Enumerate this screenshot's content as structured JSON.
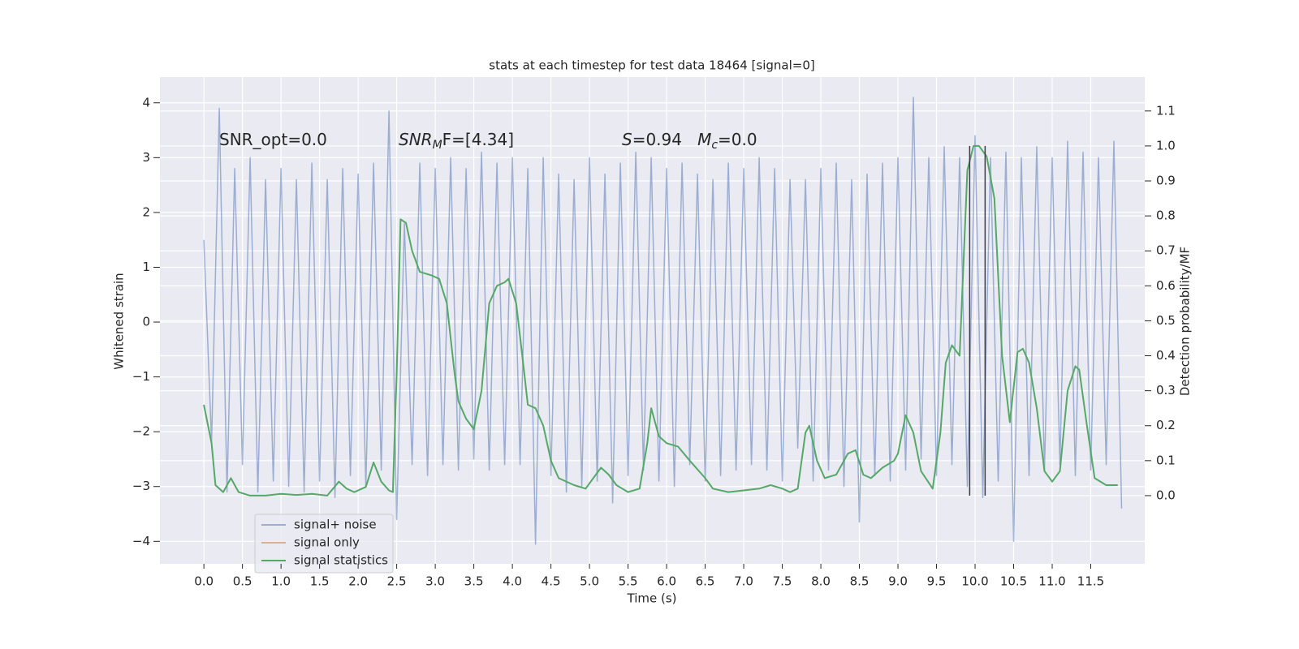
{
  "chart_data": {
    "type": "line",
    "title": "stats at each timestep for test data 18464 [signal=0]",
    "xlabel": "Time (s)",
    "ylabel": "Whitened strain",
    "y2label": "Detection probability/MF",
    "xlim": [
      -0.57,
      12.2
    ],
    "ylim": [
      -4.41,
      4.47
    ],
    "y2lim": [
      -0.195,
      1.197
    ],
    "grid": true,
    "legend": "lower left",
    "xticks": [
      {
        "value": 0,
        "label": "0.0"
      },
      {
        "value": 0.5,
        "label": "0.5"
      },
      {
        "value": 1,
        "label": "1.0"
      },
      {
        "value": 1.5,
        "label": "1.5"
      },
      {
        "value": 2,
        "label": "2.0"
      },
      {
        "value": 2.5,
        "label": "2.5"
      },
      {
        "value": 3,
        "label": "3.0"
      },
      {
        "value": 3.5,
        "label": "3.5"
      },
      {
        "value": 4,
        "label": "4.0"
      },
      {
        "value": 4.5,
        "label": "4.5"
      },
      {
        "value": 5,
        "label": "5.0"
      },
      {
        "value": 5.5,
        "label": "5.5"
      },
      {
        "value": 6,
        "label": "6.0"
      },
      {
        "value": 6.5,
        "label": "6.5"
      },
      {
        "value": 7,
        "label": "7.0"
      },
      {
        "value": 7.5,
        "label": "7.5"
      },
      {
        "value": 8,
        "label": "8.0"
      },
      {
        "value": 8.5,
        "label": "8.5"
      },
      {
        "value": 9,
        "label": "9.0"
      },
      {
        "value": 9.5,
        "label": "9.5"
      },
      {
        "value": 10,
        "label": "10.0"
      },
      {
        "value": 10.5,
        "label": "10.5"
      },
      {
        "value": 11,
        "label": "11.0"
      },
      {
        "value": 11.5,
        "label": "11.5"
      }
    ],
    "yticks": [
      {
        "value": -4,
        "label": "−4"
      },
      {
        "value": -3,
        "label": "−3"
      },
      {
        "value": -2,
        "label": "−2"
      },
      {
        "value": -1,
        "label": "−1"
      },
      0,
      1,
      2,
      3,
      4
    ],
    "y2ticks": [
      {
        "value": 0,
        "label": "0.0"
      },
      {
        "value": 0.1,
        "label": "0.1"
      },
      {
        "value": 0.2,
        "label": "0.2"
      },
      {
        "value": 0.3,
        "label": "0.3"
      },
      {
        "value": 0.4,
        "label": "0.4"
      },
      {
        "value": 0.5,
        "label": "0.5"
      },
      {
        "value": 0.6,
        "label": "0.6"
      },
      {
        "value": 0.7,
        "label": "0.7"
      },
      {
        "value": 0.8,
        "label": "0.8"
      },
      {
        "value": 0.9,
        "label": "0.9"
      },
      {
        "value": 1,
        "label": "1.0"
      },
      {
        "value": 1.1,
        "label": "1.1"
      }
    ],
    "annotations": [
      [
        {
          "text": "SNR_opt=0.0",
          "style": "normal"
        }
      ],
      [
        {
          "text": "SNR",
          "style": "italic"
        },
        {
          "text": "M",
          "style": "sub"
        },
        {
          "text": "F=[4.34]",
          "style": "normal"
        }
      ],
      [
        {
          "text": "S",
          "style": "italic"
        },
        {
          "text": "=0.94   ",
          "style": "normal"
        },
        {
          "text": "M",
          "style": "italic"
        },
        {
          "text": "c",
          "style": "sub"
        },
        {
          "text": "=0.0",
          "style": "normal"
        }
      ]
    ],
    "vlines": [
      {
        "x": 9.93,
        "y2": [
          0,
          1.0
        ],
        "color": "#3a3a4a"
      },
      {
        "x": 10.13,
        "y2": [
          0,
          1.0
        ],
        "color": "#3a3a4a"
      }
    ],
    "series": [
      {
        "name": "signal+ noise",
        "color": "#4c72b0",
        "opacity": 0.5,
        "x": [
          0,
          0.1,
          0.2,
          0.3,
          0.4,
          0.5,
          0.6,
          0.7,
          0.8,
          0.9,
          1,
          1.1,
          1.2,
          1.3,
          1.4,
          1.5,
          1.6,
          1.7,
          1.8,
          1.9,
          2,
          2.1,
          2.2,
          2.3,
          2.4,
          2.5,
          2.6,
          2.7,
          2.8,
          2.9,
          3,
          3.1,
          3.2,
          3.3,
          3.4,
          3.5,
          3.6,
          3.7,
          3.8,
          3.9,
          4,
          4.1,
          4.2,
          4.3,
          4.4,
          4.5,
          4.6,
          4.7,
          4.8,
          4.9,
          5,
          5.1,
          5.2,
          5.3,
          5.4,
          5.5,
          5.6,
          5.7,
          5.8,
          5.9,
          6,
          6.1,
          6.2,
          6.3,
          6.4,
          6.5,
          6.6,
          6.7,
          6.8,
          6.9,
          7,
          7.1,
          7.2,
          7.3,
          7.4,
          7.5,
          7.6,
          7.7,
          7.8,
          7.9,
          8,
          8.1,
          8.2,
          8.3,
          8.4,
          8.5,
          8.6,
          8.7,
          8.8,
          8.9,
          9,
          9.1,
          9.2,
          9.3,
          9.4,
          9.5,
          9.6,
          9.7,
          9.8,
          9.9,
          10,
          10.1,
          10.2,
          10.3,
          10.4,
          10.5,
          10.6,
          10.7,
          10.8,
          10.9,
          11,
          11.1,
          11.2,
          11.3,
          11.4,
          11.5,
          11.6,
          11.7,
          11.8,
          11.9
        ],
        "values": [
          1.5,
          -2.2,
          3.9,
          -3.1,
          2.8,
          -2.6,
          3.0,
          -3.1,
          2.6,
          -2.9,
          2.8,
          -3.0,
          2.6,
          -3.1,
          2.9,
          -2.9,
          2.6,
          -3.2,
          2.8,
          -2.8,
          2.7,
          -3.0,
          2.9,
          -2.7,
          3.85,
          -3.6,
          1.8,
          -2.6,
          2.9,
          -2.8,
          2.8,
          -2.6,
          3.0,
          -2.7,
          2.8,
          -2.5,
          3.1,
          -2.7,
          2.9,
          -2.6,
          3.0,
          -2.6,
          2.8,
          -4.05,
          3.0,
          -2.8,
          2.7,
          -3.1,
          2.6,
          -3.0,
          3.0,
          -2.9,
          2.7,
          -3.3,
          2.9,
          -2.8,
          3.1,
          -2.7,
          3.0,
          -2.9,
          2.8,
          -3.0,
          2.9,
          -2.6,
          2.7,
          -2.9,
          2.6,
          -2.8,
          2.9,
          -2.7,
          2.8,
          -2.6,
          3.0,
          -2.7,
          2.8,
          -2.9,
          2.6,
          -2.3,
          2.6,
          -2.9,
          2.8,
          -2.7,
          2.9,
          -3.0,
          2.6,
          -3.65,
          2.7,
          -2.8,
          2.9,
          -2.9,
          3.0,
          -2.7,
          4.1,
          -2.5,
          3.0,
          -2.8,
          3.2,
          -2.6,
          3.0,
          -3.0,
          3.4,
          -3.2,
          3.0,
          -2.9,
          3.1,
          -4.0,
          3.0,
          -2.8,
          3.2,
          -2.7,
          3.0,
          -2.6,
          3.3,
          -2.8,
          3.1,
          -2.7,
          3.0,
          -2.6,
          3.3,
          -3.4
        ]
      },
      {
        "name": "signal only",
        "color": "#dd8452",
        "opacity": 0.6,
        "x": [],
        "values": []
      },
      {
        "name": "signal statistics",
        "color": "#55a868",
        "opacity": 1,
        "axis": "y2",
        "x": [
          0,
          0.1,
          0.15,
          0.25,
          0.35,
          0.45,
          0.6,
          0.8,
          1.0,
          1.2,
          1.4,
          1.6,
          1.75,
          1.85,
          1.95,
          2.1,
          2.2,
          2.3,
          2.4,
          2.45,
          2.5,
          2.55,
          2.62,
          2.7,
          2.8,
          2.95,
          3.05,
          3.15,
          3.2,
          3.25,
          3.3,
          3.4,
          3.5,
          3.6,
          3.7,
          3.8,
          3.9,
          3.95,
          4.05,
          4.15,
          4.2,
          4.3,
          4.4,
          4.5,
          4.6,
          4.8,
          4.95,
          5.05,
          5.15,
          5.25,
          5.35,
          5.5,
          5.65,
          5.75,
          5.8,
          5.9,
          6.0,
          6.15,
          6.3,
          6.5,
          6.6,
          6.8,
          7.0,
          7.2,
          7.35,
          7.5,
          7.6,
          7.7,
          7.8,
          7.85,
          7.95,
          8.05,
          8.2,
          8.35,
          8.45,
          8.55,
          8.65,
          8.8,
          8.95,
          9.0,
          9.1,
          9.2,
          9.3,
          9.45,
          9.55,
          9.62,
          9.7,
          9.8,
          9.9,
          9.98,
          10.05,
          10.15,
          10.25,
          10.35,
          10.45,
          10.55,
          10.62,
          10.7,
          10.8,
          10.9,
          11.0,
          11.1,
          11.2,
          11.3,
          11.35,
          11.45,
          11.55,
          11.7,
          11.85
        ],
        "values": [
          0.26,
          0.15,
          0.03,
          0.01,
          0.05,
          0.01,
          0.0,
          0.0,
          0.005,
          0.002,
          0.005,
          0.0,
          0.04,
          0.02,
          0.01,
          0.025,
          0.095,
          0.04,
          0.015,
          0.01,
          0.35,
          0.79,
          0.78,
          0.7,
          0.64,
          0.63,
          0.62,
          0.55,
          0.45,
          0.35,
          0.27,
          0.22,
          0.19,
          0.3,
          0.55,
          0.6,
          0.61,
          0.62,
          0.55,
          0.36,
          0.26,
          0.25,
          0.2,
          0.1,
          0.05,
          0.03,
          0.02,
          0.05,
          0.08,
          0.06,
          0.03,
          0.01,
          0.02,
          0.15,
          0.25,
          0.17,
          0.15,
          0.14,
          0.1,
          0.05,
          0.02,
          0.01,
          0.015,
          0.02,
          0.03,
          0.02,
          0.01,
          0.02,
          0.18,
          0.2,
          0.1,
          0.05,
          0.06,
          0.12,
          0.13,
          0.06,
          0.05,
          0.08,
          0.1,
          0.12,
          0.23,
          0.18,
          0.07,
          0.02,
          0.18,
          0.38,
          0.43,
          0.4,
          0.93,
          1.0,
          1.0,
          0.97,
          0.85,
          0.4,
          0.21,
          0.41,
          0.42,
          0.38,
          0.25,
          0.07,
          0.04,
          0.07,
          0.3,
          0.37,
          0.36,
          0.2,
          0.05,
          0.03,
          0.03
        ]
      }
    ]
  }
}
